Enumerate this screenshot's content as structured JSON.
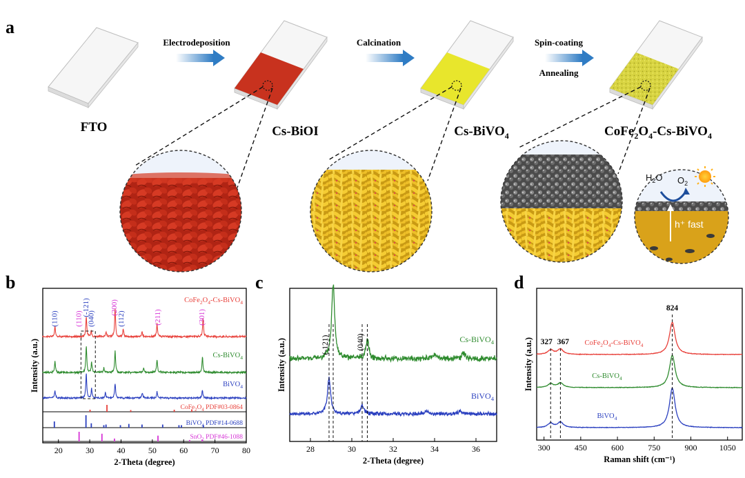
{
  "panel_labels": {
    "a": "a",
    "b": "b",
    "c": "c",
    "d": "d"
  },
  "schematic": {
    "steps": [
      {
        "sample_label": "FTO"
      },
      {
        "arrow_label": "Electrodeposition",
        "sample_label": "Cs-BiOI",
        "fill_color": "#c8321e"
      },
      {
        "arrow_label": "Calcination",
        "sample_label_prefix": "Cs-BiVO",
        "sample_label_sub": "4",
        "fill_color": "#e8e62c"
      },
      {
        "arrow_label": "Spin-coating",
        "arrow_label_2": "Annealing",
        "sample_label_parts": [
          "CoFe",
          "2",
          "O",
          "4",
          "-Cs-BiVO",
          "4"
        ],
        "fill_color": "#dcd84a"
      }
    ],
    "inset": {
      "h2o": [
        "H",
        "2",
        "O"
      ],
      "o2": [
        "O",
        "2"
      ],
      "hole_label": "h⁺ fast"
    }
  },
  "chart_data": [
    {
      "id": "b",
      "type": "line",
      "xlabel": "2-Theta (degree)",
      "ylabel": "Intensity (a.u.)",
      "xlim": [
        15,
        80
      ],
      "xticks": [
        20,
        30,
        40,
        50,
        60,
        70,
        80
      ],
      "colors": {
        "cofe": "#e8403a",
        "cs": "#2e8b2e",
        "bivo4": "#2a3fbf",
        "snox": "#d633d6"
      },
      "series": [
        {
          "name": "CoFe2O4-Cs-BiVO4",
          "label_parts": [
            "CoFe",
            "2",
            "O",
            "4",
            "-Cs-BiVO",
            "4"
          ],
          "color": "#e8403a",
          "peaks": [
            [
              18.9,
              0.35
            ],
            [
              28.9,
              0.7
            ],
            [
              30.5,
              0.2
            ],
            [
              35.2,
              0.15
            ],
            [
              38.1,
              0.95
            ],
            [
              40.7,
              0.25
            ],
            [
              46.7,
              0.15
            ],
            [
              51.5,
              0.45
            ],
            [
              66.2,
              0.65
            ]
          ]
        },
        {
          "name": "Cs-BiVO4",
          "label_parts": [
            "Cs-BiVO",
            "4"
          ],
          "color": "#2e8b2e",
          "peaks": [
            [
              18.9,
              0.4
            ],
            [
              28.9,
              0.95
            ],
            [
              30.6,
              0.35
            ],
            [
              34.5,
              0.15
            ],
            [
              38.1,
              0.75
            ],
            [
              47.2,
              0.15
            ],
            [
              51.5,
              0.45
            ],
            [
              66.0,
              0.55
            ]
          ]
        },
        {
          "name": "BiVO4",
          "label_parts": [
            "BiVO",
            "4"
          ],
          "color": "#2a3fbf",
          "peaks": [
            [
              18.9,
              0.3
            ],
            [
              28.9,
              0.95
            ],
            [
              30.6,
              0.35
            ],
            [
              35.0,
              0.2
            ],
            [
              38.1,
              0.55
            ],
            [
              46.8,
              0.2
            ],
            [
              51.5,
              0.25
            ],
            [
              66.0,
              0.3
            ]
          ]
        }
      ],
      "reference_cards": [
        {
          "name": "CoFe2O4 PDF#03-0864",
          "parts": [
            "CoFe",
            "2",
            "O",
            "4",
            " PDF#03-0864"
          ],
          "color": "#e8403a",
          "sticks": [
            [
              30.1,
              0.3
            ],
            [
              35.5,
              1.0
            ],
            [
              43.1,
              0.25
            ],
            [
              57.0,
              0.3
            ],
            [
              62.6,
              0.35
            ]
          ]
        },
        {
          "name": "BiVO4 PDF#14-0688",
          "parts": [
            "BiVO",
            "4",
            " PDF#14-0688"
          ],
          "color": "#2a3fbf",
          "sticks": [
            [
              18.7,
              0.5
            ],
            [
              28.8,
              1.0
            ],
            [
              30.5,
              0.35
            ],
            [
              34.5,
              0.2
            ],
            [
              35.2,
              0.25
            ],
            [
              39.8,
              0.2
            ],
            [
              42.5,
              0.3
            ],
            [
              46.7,
              0.25
            ],
            [
              53.3,
              0.25
            ],
            [
              58.5,
              0.2
            ],
            [
              59.3,
              0.2
            ],
            [
              66.3,
              0.2
            ]
          ]
        },
        {
          "name": "SnO2 PDF#46-1088",
          "parts": [
            "SnO",
            "2",
            " PDF#46-1088"
          ],
          "color": "#d633d6",
          "sticks": [
            [
              26.6,
              1.0
            ],
            [
              33.9,
              0.8
            ],
            [
              37.9,
              0.3
            ],
            [
              51.8,
              0.6
            ],
            [
              61.9,
              0.15
            ],
            [
              65.9,
              0.2
            ]
          ]
        }
      ],
      "annotations": [
        {
          "text": "(110)",
          "x": 18.9,
          "color": "#2a3fbf"
        },
        {
          "text": "(110)",
          "x": 26.6,
          "color": "#d633d6"
        },
        {
          "text": "(-121)",
          "x": 28.9,
          "color": "#2a3fbf"
        },
        {
          "text": "(040)",
          "x": 30.5,
          "color": "#2a3fbf"
        },
        {
          "text": "(112)",
          "x": 40.1,
          "color": "#2a3fbf"
        },
        {
          "text": "(200)",
          "x": 37.9,
          "color": "#d633d6"
        },
        {
          "text": "(211)",
          "x": 51.8,
          "color": "#d633d6"
        },
        {
          "text": "(301)",
          "x": 65.9,
          "color": "#d633d6"
        }
      ]
    },
    {
      "id": "c",
      "type": "line",
      "xlabel": "2-Theta (degree)",
      "ylabel": "Intensity (a.u.)",
      "xlim": [
        27,
        37
      ],
      "xticks": [
        28,
        30,
        32,
        34,
        36
      ],
      "series": [
        {
          "name": "Cs-BiVO4",
          "label_parts": [
            "Cs-BiVO",
            "4"
          ],
          "color": "#2e8b2e",
          "peaks": [
            [
              29.1,
              1.0
            ],
            [
              30.75,
              0.25
            ],
            [
              34.0,
              0.06
            ],
            [
              35.4,
              0.08
            ]
          ]
        },
        {
          "name": "BiVO4",
          "label_parts": [
            "BiVO",
            "4"
          ],
          "color": "#2a3fbf",
          "peaks": [
            [
              28.9,
              0.75
            ],
            [
              30.5,
              0.18
            ],
            [
              33.6,
              0.05
            ],
            [
              35.2,
              0.05
            ]
          ]
        }
      ],
      "annotations": [
        {
          "text": "(-121)",
          "x": 28.9
        },
        {
          "text": "(040)",
          "x": 30.6
        }
      ],
      "ref_lines": [
        28.9,
        29.1,
        30.5,
        30.75
      ]
    },
    {
      "id": "d",
      "type": "line",
      "xlabel": "Raman shift (cm⁻¹)",
      "ylabel": "Intensity (a.u.)",
      "xlim": [
        270,
        1110
      ],
      "xticks": [
        300,
        450,
        600,
        750,
        900,
        1050
      ],
      "series": [
        {
          "name": "CoFe2O4-Cs-BiVO4",
          "label_parts": [
            "CoFe",
            "2",
            "O",
            "4",
            "-Cs-BiVO",
            "4"
          ],
          "color": "#e8403a",
          "peaks": [
            [
              327,
              0.12
            ],
            [
              367,
              0.14
            ],
            [
              824,
              0.85
            ]
          ]
        },
        {
          "name": "Cs-BiVO4",
          "label_parts": [
            "Cs-BiVO",
            "4"
          ],
          "color": "#2e8b2e",
          "peaks": [
            [
              327,
              0.1
            ],
            [
              367,
              0.12
            ],
            [
              824,
              0.85
            ]
          ]
        },
        {
          "name": "BiVO4",
          "label_parts": [
            "BiVO",
            "4"
          ],
          "color": "#2a3fbf",
          "peaks": [
            [
              327,
              0.12
            ],
            [
              367,
              0.15
            ],
            [
              824,
              1.1
            ]
          ]
        }
      ],
      "annotations": [
        {
          "text": "327",
          "x": 327
        },
        {
          "text": "367",
          "x": 367
        },
        {
          "text": "824",
          "x": 824
        }
      ]
    }
  ]
}
